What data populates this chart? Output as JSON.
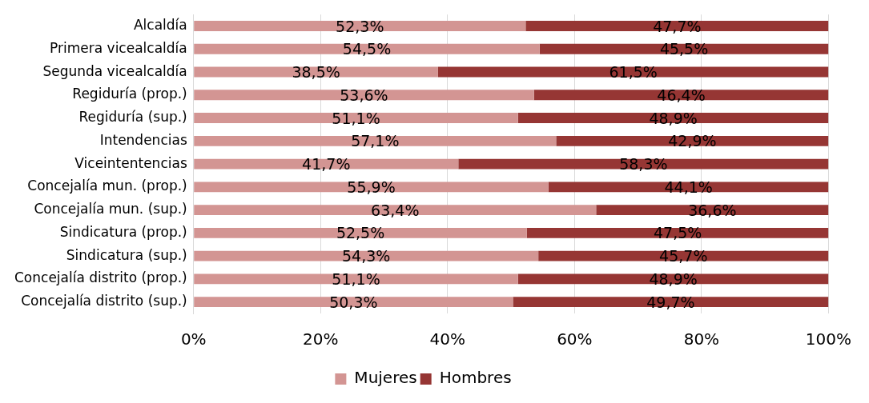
{
  "chart_data": {
    "type": "bar",
    "orientation": "horizontal",
    "stacked": true,
    "categories": [
      "Alcaldía",
      "Primera vicealcaldía",
      "Segunda vicealcaldía",
      "Regiduría (prop.)",
      "Regiduría (sup.)",
      "Intendencias",
      "Viceintentencias",
      "Concejalía mun. (prop.)",
      "Concejalía mun. (sup.)",
      "Sindicatura (prop.)",
      "Sindicatura (sup.)",
      "Concejalía distrito (prop.)",
      "Concejalía distrito (sup.)"
    ],
    "series": [
      {
        "name": "Mujeres",
        "color": "#d39593",
        "values": [
          52.3,
          54.5,
          38.5,
          53.6,
          51.1,
          57.1,
          41.7,
          55.9,
          63.4,
          52.5,
          54.3,
          51.1,
          50.3
        ],
        "value_labels": [
          "52,3%",
          "54,5%",
          "38,5%",
          "53,6%",
          "51,1%",
          "57,1%",
          "41,7%",
          "55,9%",
          "63,4%",
          "52,5%",
          "54,3%",
          "51,1%",
          "50,3%"
        ]
      },
      {
        "name": "Hombres",
        "color": "#963634",
        "values": [
          47.7,
          45.5,
          61.5,
          46.4,
          48.9,
          42.9,
          58.3,
          44.1,
          36.6,
          47.5,
          45.7,
          48.9,
          49.7
        ],
        "value_labels": [
          "47,7%",
          "45,5%",
          "61,5%",
          "46,4%",
          "48,9%",
          "42,9%",
          "58,3%",
          "44,1%",
          "36,6%",
          "47,5%",
          "45,7%",
          "48,9%",
          "49,7%"
        ]
      }
    ],
    "xlim": [
      0,
      100
    ],
    "xticks": [
      {
        "value": 0,
        "label": "0%"
      },
      {
        "value": 20,
        "label": "20%"
      },
      {
        "value": 40,
        "label": "40%"
      },
      {
        "value": 60,
        "label": "60%"
      },
      {
        "value": 80,
        "label": "80%"
      },
      {
        "value": 100,
        "label": "100%"
      }
    ],
    "grid": "x",
    "legend": "bottom"
  }
}
